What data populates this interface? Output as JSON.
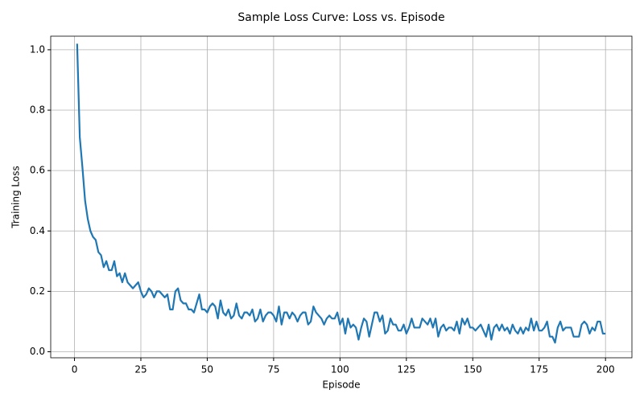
{
  "chart_data": {
    "type": "line",
    "title": "Sample Loss Curve: Loss vs. Episode",
    "x_label": "Episode",
    "y_label": "Training Loss",
    "x": [
      1,
      2,
      3,
      4,
      5,
      6,
      7,
      8,
      9,
      10,
      11,
      12,
      13,
      14,
      15,
      16,
      17,
      18,
      19,
      20,
      21,
      22,
      23,
      24,
      25,
      26,
      27,
      28,
      29,
      30,
      31,
      32,
      33,
      34,
      35,
      36,
      37,
      38,
      39,
      40,
      41,
      42,
      43,
      44,
      45,
      46,
      47,
      48,
      49,
      50,
      51,
      52,
      53,
      54,
      55,
      56,
      57,
      58,
      59,
      60,
      61,
      62,
      63,
      64,
      65,
      66,
      67,
      68,
      69,
      70,
      71,
      72,
      73,
      74,
      75,
      76,
      77,
      78,
      79,
      80,
      81,
      82,
      83,
      84,
      85,
      86,
      87,
      88,
      89,
      90,
      91,
      92,
      93,
      94,
      95,
      96,
      97,
      98,
      99,
      100,
      101,
      102,
      103,
      104,
      105,
      106,
      107,
      108,
      109,
      110,
      111,
      112,
      113,
      114,
      115,
      116,
      117,
      118,
      119,
      120,
      121,
      122,
      123,
      124,
      125,
      126,
      127,
      128,
      129,
      130,
      131,
      132,
      133,
      134,
      135,
      136,
      137,
      138,
      139,
      140,
      141,
      142,
      143,
      144,
      145,
      146,
      147,
      148,
      149,
      150,
      151,
      152,
      153,
      154,
      155,
      156,
      157,
      158,
      159,
      160,
      161,
      162,
      163,
      164,
      165,
      166,
      167,
      168,
      169,
      170,
      171,
      172,
      173,
      174,
      175,
      176,
      177,
      178,
      179,
      180,
      181,
      182,
      183,
      184,
      185,
      186,
      187,
      188,
      189,
      190,
      191,
      192,
      193,
      194,
      195,
      196,
      197,
      198,
      199,
      200
    ],
    "series": [
      {
        "name": "Training Loss",
        "color": "#1f77b4",
        "values": [
          1.02,
          0.71,
          0.61,
          0.5,
          0.44,
          0.4,
          0.38,
          0.37,
          0.33,
          0.32,
          0.28,
          0.3,
          0.27,
          0.27,
          0.3,
          0.25,
          0.26,
          0.23,
          0.26,
          0.23,
          0.22,
          0.21,
          0.22,
          0.23,
          0.2,
          0.18,
          0.19,
          0.21,
          0.2,
          0.18,
          0.2,
          0.2,
          0.19,
          0.18,
          0.19,
          0.14,
          0.14,
          0.2,
          0.21,
          0.17,
          0.16,
          0.16,
          0.14,
          0.14,
          0.13,
          0.16,
          0.19,
          0.14,
          0.14,
          0.13,
          0.15,
          0.16,
          0.15,
          0.11,
          0.17,
          0.13,
          0.12,
          0.14,
          0.11,
          0.12,
          0.16,
          0.12,
          0.11,
          0.13,
          0.13,
          0.12,
          0.14,
          0.1,
          0.11,
          0.14,
          0.1,
          0.12,
          0.13,
          0.13,
          0.12,
          0.1,
          0.15,
          0.09,
          0.13,
          0.13,
          0.11,
          0.13,
          0.12,
          0.1,
          0.12,
          0.13,
          0.13,
          0.09,
          0.1,
          0.15,
          0.13,
          0.12,
          0.11,
          0.09,
          0.11,
          0.12,
          0.11,
          0.11,
          0.13,
          0.09,
          0.11,
          0.06,
          0.11,
          0.08,
          0.09,
          0.08,
          0.04,
          0.08,
          0.11,
          0.1,
          0.05,
          0.09,
          0.13,
          0.13,
          0.1,
          0.12,
          0.06,
          0.07,
          0.11,
          0.09,
          0.09,
          0.07,
          0.07,
          0.09,
          0.06,
          0.08,
          0.11,
          0.08,
          0.08,
          0.08,
          0.11,
          0.1,
          0.09,
          0.11,
          0.08,
          0.11,
          0.05,
          0.08,
          0.09,
          0.07,
          0.08,
          0.08,
          0.07,
          0.1,
          0.06,
          0.11,
          0.09,
          0.11,
          0.08,
          0.08,
          0.07,
          0.08,
          0.09,
          0.07,
          0.05,
          0.09,
          0.04,
          0.08,
          0.09,
          0.07,
          0.09,
          0.07,
          0.08,
          0.06,
          0.09,
          0.07,
          0.06,
          0.08,
          0.06,
          0.08,
          0.07,
          0.11,
          0.07,
          0.1,
          0.07,
          0.07,
          0.08,
          0.1,
          0.05,
          0.05,
          0.03,
          0.08,
          0.1,
          0.07,
          0.08,
          0.08,
          0.08,
          0.05,
          0.05,
          0.05,
          0.09,
          0.1,
          0.09,
          0.06,
          0.08,
          0.07,
          0.1,
          0.1,
          0.06,
          0.06
        ]
      }
    ],
    "xlim": [
      -8.95,
      209.95
    ],
    "ylim": [
      -0.02,
      1.045
    ],
    "xticks": [
      0,
      25,
      50,
      75,
      100,
      125,
      150,
      175,
      200
    ],
    "yticks": [
      {
        "value": 0,
        "label": "0.0"
      },
      0.2,
      0.4,
      0.6,
      0.8,
      {
        "value": 1,
        "label": "1.0"
      }
    ],
    "grid": true
  }
}
